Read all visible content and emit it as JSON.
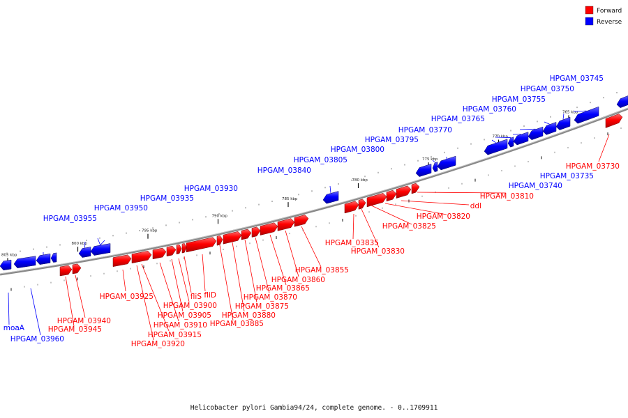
{
  "caption": "Helicobacter pylori Gambia94/24, complete genome. - 0..1709911",
  "legend": [
    {
      "label": "Forward",
      "color": "#ff0000"
    },
    {
      "label": "Reverse",
      "color": "#0000ff"
    }
  ],
  "colors": {
    "forward": "#ff0000",
    "reverse": "#0000ff",
    "backbone": "#808080"
  },
  "ticks": [
    {
      "kbp": 765,
      "label": "765 kbp"
    },
    {
      "kbp": 770,
      "label": "770 kbp"
    },
    {
      "kbp": 775,
      "label": "775 kbp"
    },
    {
      "kbp": 780,
      "label": "780 kbp"
    },
    {
      "kbp": 785,
      "label": "785 kbp"
    },
    {
      "kbp": 790,
      "label": "790 kbp"
    },
    {
      "kbp": 795,
      "label": "795 kbp"
    },
    {
      "kbp": 800,
      "label": "800 kbp"
    },
    {
      "kbp": 805,
      "label": "805 kbp"
    }
  ],
  "genes": {
    "reverse": [
      "HPGAM_03745",
      "HPGAM_03750",
      "HPGAM_03755",
      "HPGAM_03760",
      "HPGAM_03765",
      "HPGAM_03770",
      "HPGAM_03795",
      "HPGAM_03800",
      "HPGAM_03805",
      "HPGAM_03840",
      "HPGAM_03930",
      "HPGAM_03935",
      "HPGAM_03950",
      "HPGAM_03955",
      "HPGAM_03740",
      "HPGAM_03735",
      "moaA",
      "HPGAM_03960"
    ],
    "forward": [
      "HPGAM_03730",
      "HPGAM_03810",
      "ddl",
      "HPGAM_03820",
      "HPGAM_03825",
      "HPGAM_03835",
      "HPGAM_03830",
      "HPGAM_03855",
      "HPGAM_03860",
      "HPGAM_03865",
      "HPGAM_03870",
      "HPGAM_03875",
      "HPGAM_03880",
      "HPGAM_03885",
      "fliD",
      "fliS",
      "HPGAM_03900",
      "HPGAM_03905",
      "HPGAM_03910",
      "HPGAM_03915",
      "HPGAM_03920",
      "HPGAM_03925",
      "HPGAM_03940",
      "HPGAM_03945"
    ]
  }
}
